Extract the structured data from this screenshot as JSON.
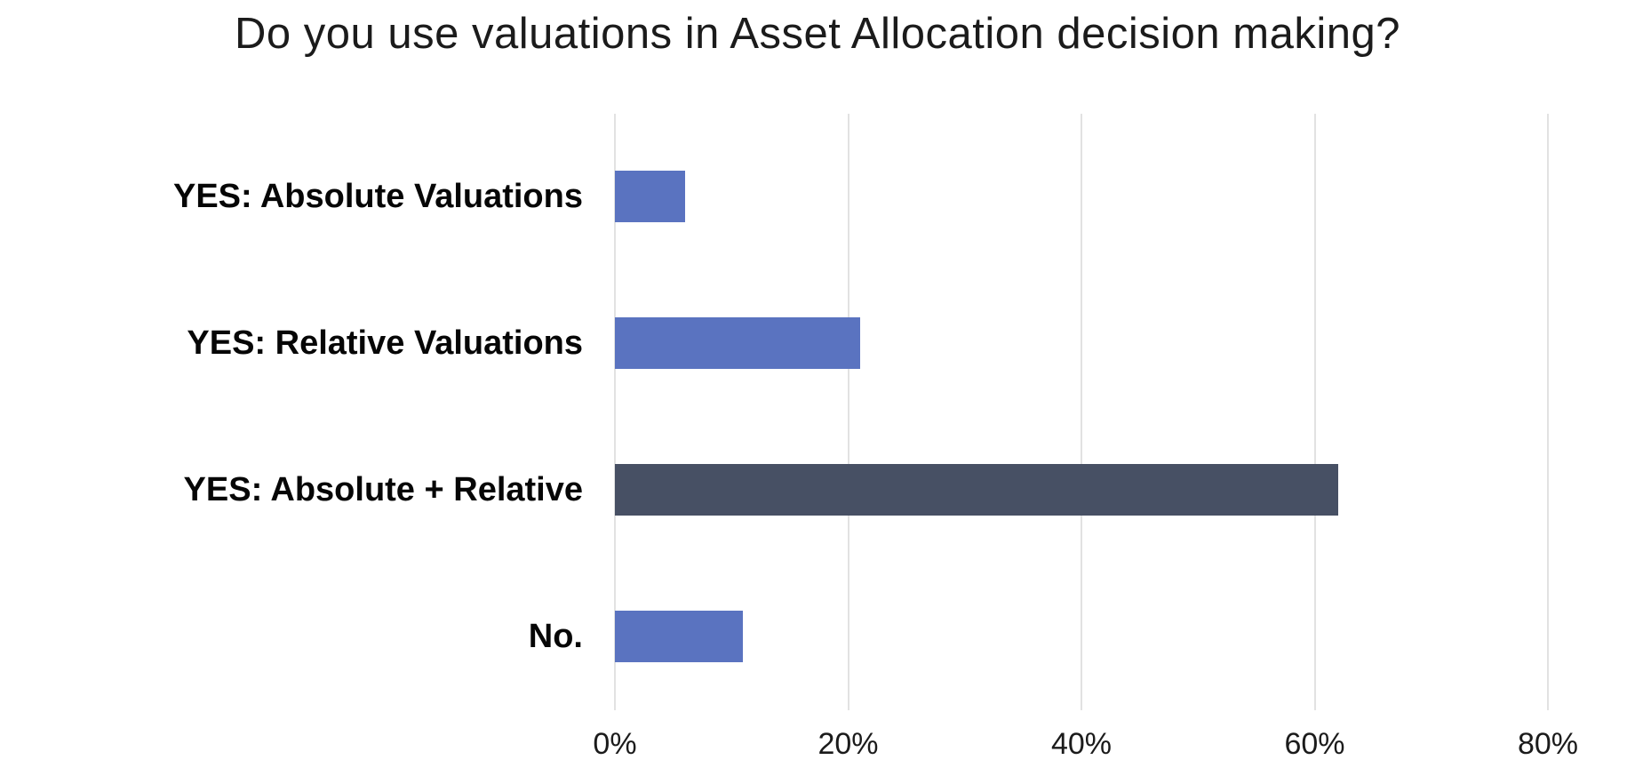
{
  "title": "Do you use valuations in Asset Allocation decision making?",
  "colors": {
    "background": "#ffffff",
    "bar_default": "#5a73c0",
    "bar_highlight": "#475064",
    "gridline": "#e2e2e2",
    "title_text": "#1b1b1b",
    "label_text": "#060606"
  },
  "chart_data": {
    "type": "bar",
    "orientation": "horizontal",
    "title": "Do you use valuations in Asset Allocation decision making?",
    "categories": [
      "YES: Absolute Valuations",
      "YES: Relative Valuations",
      "YES: Absolute + Relative",
      "No."
    ],
    "values": [
      6,
      21,
      62,
      11
    ],
    "unit": "%",
    "series_colors": [
      "#5a73c0",
      "#5a73c0",
      "#475064",
      "#5a73c0"
    ],
    "bar_color_note": "All bars medium blue except 'YES: Absolute + Relative' which is dark slate",
    "xlabel": "",
    "ylabel": "",
    "x_ticks": [
      "0%",
      "20%",
      "40%",
      "60%",
      "80%"
    ],
    "x_tick_values": [
      0,
      20,
      40,
      60,
      80
    ],
    "xlim": [
      0,
      80
    ],
    "grid": "vertical-only",
    "legend": "none",
    "data_labels": "none"
  }
}
